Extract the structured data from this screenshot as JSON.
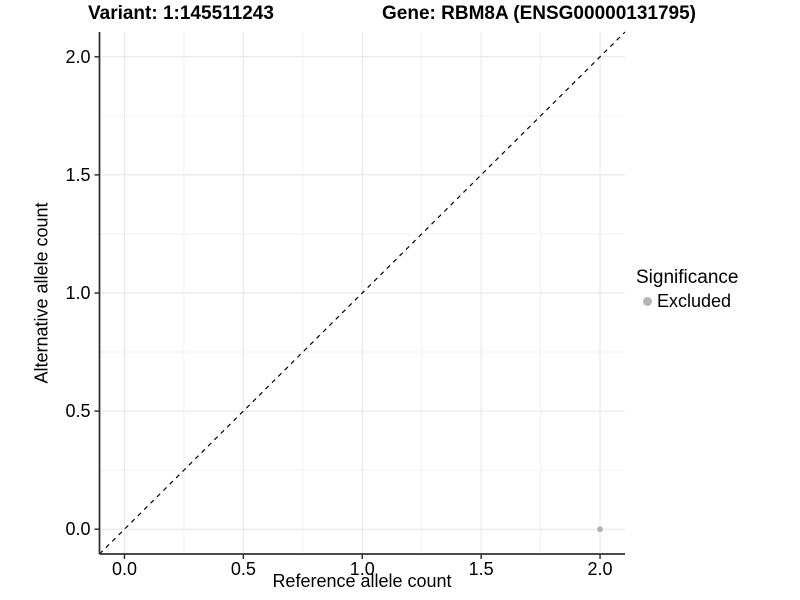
{
  "chart_data": {
    "type": "scatter",
    "title_left": "Variant: 1:145511243",
    "title_right": "Gene: RBM8A (ENSG00000131795)",
    "xlabel": "Reference allele count",
    "ylabel": "Alternative allele count",
    "xlim": [
      -0.105,
      2.105
    ],
    "ylim": [
      -0.105,
      2.105
    ],
    "xticks": [
      0,
      0.5,
      1,
      1.5,
      2
    ],
    "xtick_labels": [
      "0.0",
      "0.5",
      "1.0",
      "1.5",
      "2.0"
    ],
    "yticks": [
      0,
      0.5,
      1,
      1.5,
      2
    ],
    "ytick_labels": [
      "0.0",
      "0.5",
      "1.0",
      "1.5",
      "2.0"
    ],
    "minor_ticks": [
      0.25,
      0.75,
      1.25,
      1.75
    ],
    "grid": "major+minor",
    "reference_line": {
      "slope": 1,
      "intercept": 0,
      "style": "dashed",
      "color": "#000000"
    },
    "series": [
      {
        "name": "Excluded",
        "color": "#b5b5b5",
        "points": [
          {
            "x": 2.0,
            "y": 0.0
          }
        ]
      }
    ],
    "legend": {
      "title": "Significance",
      "position": "right",
      "items": [
        {
          "label": "Excluded",
          "color": "#b5b5b5"
        }
      ]
    }
  },
  "colors": {
    "background": "#ffffff",
    "grid_major": "#e6e6e6",
    "grid_minor": "#f2f2f2",
    "axis": "#333333",
    "tick": "#333333",
    "text": "#000000"
  }
}
